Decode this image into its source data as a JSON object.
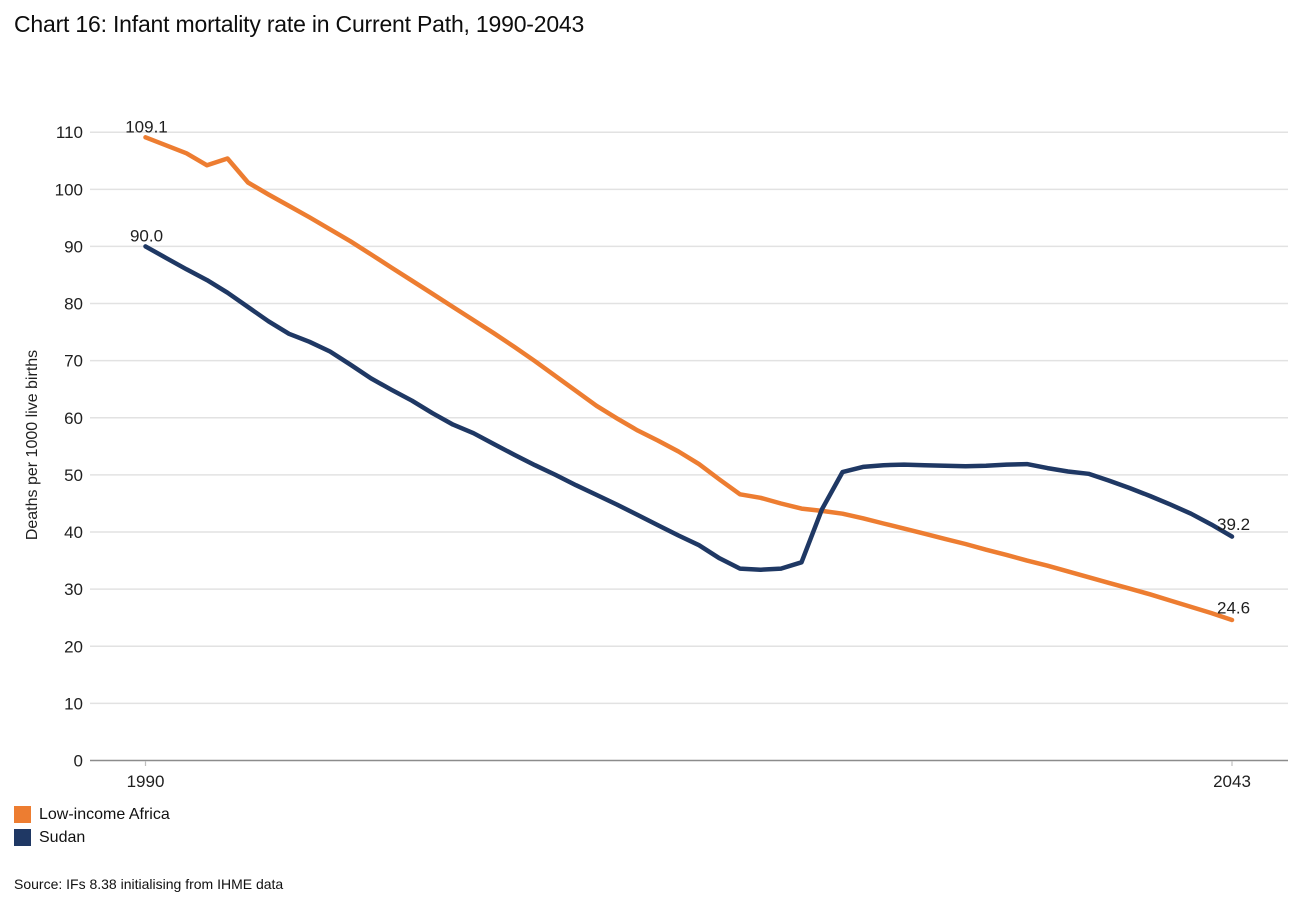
{
  "source": "Source: IFs 8.38 initialising from IHME data",
  "chart_data": {
    "type": "line",
    "title": "Chart 16: Infant mortality rate in Current Path, 1990-2043",
    "xlabel": "",
    "ylabel": "Deaths per 1000 live births",
    "ylim": [
      0,
      110
    ],
    "yticks": [
      0,
      10,
      20,
      30,
      40,
      50,
      60,
      70,
      80,
      90,
      100,
      110
    ],
    "xticks": [
      1990,
      2043
    ],
    "grid": true,
    "legend_position": "bottom-left",
    "gridline_color": "#e2e2e2",
    "axis_line_color": "#8c8c8c",
    "years": [
      1990,
      1991,
      1992,
      1993,
      1994,
      1995,
      1996,
      1997,
      1998,
      1999,
      2000,
      2001,
      2002,
      2003,
      2004,
      2005,
      2006,
      2007,
      2008,
      2009,
      2010,
      2011,
      2012,
      2013,
      2014,
      2015,
      2016,
      2017,
      2018,
      2019,
      2020,
      2021,
      2022,
      2023,
      2024,
      2025,
      2026,
      2027,
      2028,
      2029,
      2030,
      2031,
      2032,
      2033,
      2034,
      2035,
      2036,
      2037,
      2038,
      2039,
      2040,
      2041,
      2042,
      2043
    ],
    "series": [
      {
        "name": "Low-income Africa",
        "color": "#ED7D31",
        "start_label": "109.1",
        "end_label": "24.6",
        "values": [
          109.1,
          107.7,
          106.3,
          104.2,
          105.4,
          101.2,
          99.1,
          97.1,
          95.1,
          93.0,
          90.9,
          88.6,
          86.3,
          84.0,
          81.7,
          79.4,
          77.1,
          74.8,
          72.4,
          69.9,
          67.3,
          64.7,
          62.1,
          59.9,
          57.8,
          56.0,
          54.1,
          51.9,
          49.2,
          46.6,
          46.0,
          45.0,
          44.1,
          43.7,
          43.2,
          42.4,
          41.5,
          40.6,
          39.7,
          38.8,
          37.9,
          36.9,
          36.0,
          35.0,
          34.1,
          33.1,
          32.1,
          31.1,
          30.1,
          29.1,
          28.0,
          26.9,
          25.8,
          24.6
        ]
      },
      {
        "name": "Sudan",
        "color": "#1F3864",
        "start_label": "90.0",
        "end_label": "39.2",
        "values": [
          90.0,
          88.0,
          86.0,
          84.1,
          81.9,
          79.4,
          76.9,
          74.7,
          73.3,
          71.6,
          69.3,
          66.9,
          64.9,
          63.0,
          60.8,
          58.8,
          57.3,
          55.4,
          53.5,
          51.7,
          50.0,
          48.2,
          46.5,
          44.8,
          43.0,
          41.2,
          39.4,
          37.7,
          35.4,
          33.6,
          33.4,
          33.6,
          34.7,
          44.0,
          50.5,
          51.4,
          51.7,
          51.8,
          51.7,
          51.6,
          51.5,
          51.6,
          51.8,
          51.9,
          51.2,
          50.6,
          50.2,
          49.0,
          47.7,
          46.3,
          44.8,
          43.2,
          41.3,
          39.2
        ]
      }
    ]
  }
}
